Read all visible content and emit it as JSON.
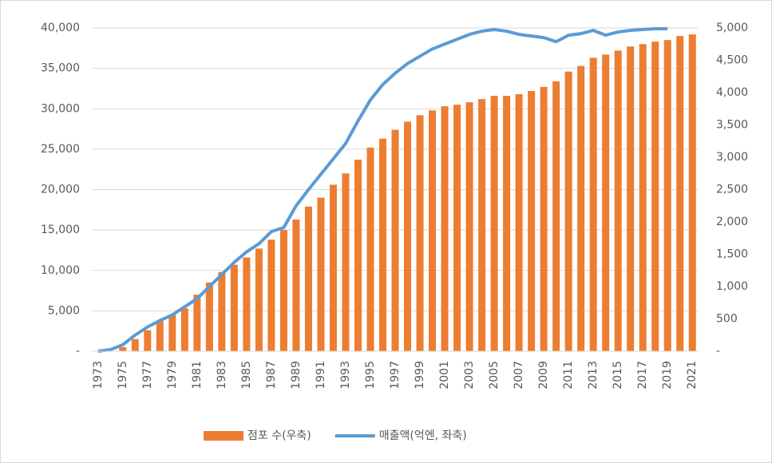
{
  "chart_data": {
    "type": "bar_line",
    "categories": [
      "1973",
      null,
      "1975",
      null,
      "1977",
      null,
      "1979",
      null,
      "1981",
      null,
      "1983",
      null,
      "1985",
      null,
      "1987",
      null,
      "1989",
      null,
      "1991",
      null,
      "1993",
      null,
      "1995",
      null,
      "1997",
      null,
      "1999",
      null,
      "2001",
      null,
      "2003",
      null,
      "2005",
      null,
      "2007",
      null,
      "2009",
      null,
      "2011",
      null,
      "2013",
      null,
      "2015",
      null,
      "2017",
      null,
      "2019",
      null,
      "2021"
    ],
    "series": [
      {
        "name": "점포 수(우축)",
        "type": "bar",
        "axis": "y2",
        "color": "#ed7d31",
        "values": [
          0,
          0,
          63,
          188,
          325,
          463,
          563,
          663,
          875,
          1063,
          1225,
          1338,
          1450,
          1588,
          1725,
          1875,
          2038,
          2238,
          2375,
          2575,
          2750,
          2963,
          3150,
          3288,
          3425,
          3550,
          3650,
          3725,
          3788,
          3813,
          3850,
          3900,
          3950,
          3950,
          3975,
          4025,
          4088,
          4175,
          4325,
          4413,
          4538,
          4588,
          4650,
          4713,
          4750,
          4788,
          4813,
          4875,
          4900
        ]
      },
      {
        "name": "매출액(억엔, 좌축)",
        "type": "line",
        "axis": "y",
        "color": "#5b9bd5",
        "values": [
          0,
          200,
          800,
          2000,
          3000,
          3800,
          4500,
          5500,
          6500,
          8000,
          9500,
          11000,
          12300,
          13300,
          14800,
          15300,
          18000,
          20000,
          21900,
          23800,
          25700,
          28500,
          31100,
          33000,
          34400,
          35600,
          36500,
          37400,
          38000,
          38600,
          39200,
          39600,
          39800,
          39600,
          39200,
          39000,
          38800,
          38300,
          39100,
          39300,
          39700,
          39100,
          39500,
          39700,
          39800,
          39900,
          39900,
          null,
          null
        ]
      }
    ],
    "ylim": [
      0,
      40000
    ],
    "yticks": [
      {
        "value": 0,
        "label": "-"
      },
      {
        "value": 5000,
        "label": "5,000"
      },
      {
        "value": 10000,
        "label": "10,000"
      },
      {
        "value": 15000,
        "label": "15,000"
      },
      {
        "value": 20000,
        "label": "20,000"
      },
      {
        "value": 25000,
        "label": "25,000"
      },
      {
        "value": 30000,
        "label": "30,000"
      },
      {
        "value": 35000,
        "label": "35,000"
      },
      {
        "value": 40000,
        "label": "40,000"
      }
    ],
    "y2lim": [
      0,
      5000
    ],
    "y2ticks": [
      {
        "value": 0,
        "label": "-"
      },
      500,
      {
        "value": 1000,
        "label": "1,000"
      },
      {
        "value": 1500,
        "label": "1,500"
      },
      {
        "value": 2000,
        "label": "2,000"
      },
      {
        "value": 2500,
        "label": "2,500"
      },
      {
        "value": 3000,
        "label": "3,000"
      },
      {
        "value": 3500,
        "label": "3,500"
      },
      {
        "value": 4000,
        "label": "4,000"
      },
      {
        "value": 4500,
        "label": "4,500"
      },
      {
        "value": 5000,
        "label": "5,000"
      }
    ],
    "grid": true,
    "legend": "bottom"
  }
}
